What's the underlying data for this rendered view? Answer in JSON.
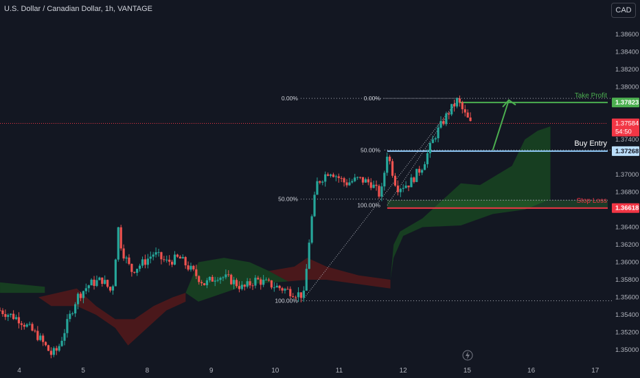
{
  "header": {
    "title": "U.S. Dollar / Canadian Dollar, 1h, VANTAGE",
    "currency_button": "CAD"
  },
  "colors": {
    "background": "#131722",
    "up_candle": "#26a69a",
    "down_candle": "#ef5350",
    "cloud_bull": "#1b5e20",
    "cloud_bear": "#5d1a1a",
    "take_profit": "#4caf50",
    "buy_entry": "#90caf9",
    "stop_loss": "#f23645",
    "current_price": "#f23645"
  },
  "chart_data": {
    "type": "candlestick",
    "title": "U.S. Dollar / Canadian Dollar, 1h, VANTAGE",
    "y_ticks": [
      "1.38600",
      "1.38400",
      "1.38200",
      "1.38000",
      "1.37400",
      "1.37000",
      "1.36800",
      "1.36400",
      "1.36200",
      "1.36000",
      "1.35800",
      "1.35600",
      "1.35400",
      "1.35200",
      "1.35000"
    ],
    "y_tick_values": [
      1.386,
      1.384,
      1.382,
      1.38,
      1.374,
      1.37,
      1.368,
      1.364,
      1.362,
      1.36,
      1.358,
      1.356,
      1.354,
      1.352,
      1.35
    ],
    "ylim": [
      1.349,
      1.3877
    ],
    "x_ticks": [
      "4",
      "5",
      "8",
      "9",
      "10",
      "11",
      "12",
      "15",
      "16",
      "17"
    ],
    "x_tick_values": [
      0,
      1,
      2,
      3,
      4,
      5,
      6,
      7,
      8,
      9
    ],
    "xlim": [
      -0.3,
      9.6
    ],
    "levels": {
      "take_profit": {
        "label": "Take Profit",
        "value": 1.37823,
        "value_label": "1.37823"
      },
      "buy_entry": {
        "label": "Buy Entry",
        "value": 1.37268,
        "value_label": "1.37268"
      },
      "stop_loss": {
        "label": "Stop Loss",
        "value": 1.36618,
        "value_label": "1.36618"
      },
      "current": {
        "value": 1.37584,
        "value_label": "1.37584",
        "countdown": "54:50"
      }
    },
    "fib_left": {
      "top": {
        "label": "0.00%",
        "value": 1.3787
      },
      "mid": {
        "label": "50.00%",
        "value": 1.3672
      },
      "bottom": {
        "label": "100.00%",
        "value": 1.3556
      }
    },
    "fib_right": {
      "top": {
        "label": "0.00%",
        "value": 1.3787
      },
      "mid": {
        "label": "50.00%",
        "value": 1.3728
      },
      "bottom": {
        "label": "100.00%",
        "value": 1.3665
      }
    },
    "price_path": [
      [
        -0.3,
        1.3545
      ],
      [
        0.0,
        1.3535
      ],
      [
        0.3,
        1.3515
      ],
      [
        0.5,
        1.3495
      ],
      [
        0.6,
        1.35
      ],
      [
        0.75,
        1.353
      ],
      [
        0.9,
        1.356
      ],
      [
        1.1,
        1.3575
      ],
      [
        1.3,
        1.358
      ],
      [
        1.45,
        1.3565
      ],
      [
        1.55,
        1.364
      ],
      [
        1.6,
        1.3615
      ],
      [
        1.75,
        1.359
      ],
      [
        1.95,
        1.36
      ],
      [
        2.1,
        1.361
      ],
      [
        2.3,
        1.36
      ],
      [
        2.5,
        1.3605
      ],
      [
        2.7,
        1.359
      ],
      [
        2.9,
        1.3575
      ],
      [
        3.1,
        1.3585
      ],
      [
        3.3,
        1.358
      ],
      [
        3.5,
        1.357
      ],
      [
        3.7,
        1.358
      ],
      [
        3.9,
        1.3575
      ],
      [
        4.1,
        1.357
      ],
      [
        4.3,
        1.3565
      ],
      [
        4.45,
        1.3562
      ],
      [
        4.55,
        1.364
      ],
      [
        4.65,
        1.369
      ],
      [
        4.85,
        1.3705
      ],
      [
        5.1,
        1.369
      ],
      [
        5.3,
        1.3695
      ],
      [
        5.5,
        1.369
      ],
      [
        5.65,
        1.3675
      ],
      [
        5.75,
        1.3725
      ],
      [
        5.9,
        1.3685
      ],
      [
        6.1,
        1.369
      ],
      [
        6.3,
        1.371
      ],
      [
        6.5,
        1.3745
      ],
      [
        6.7,
        1.377
      ],
      [
        6.85,
        1.3785
      ],
      [
        6.95,
        1.377
      ],
      [
        7.05,
        1.3758
      ]
    ],
    "cloud_bear": [
      [
        [
          0.3,
          1.356
        ],
        [
          0.9,
          1.357
        ],
        [
          1.2,
          1.355
        ],
        [
          1.5,
          1.3535
        ],
        [
          1.8,
          1.3535
        ],
        [
          2.1,
          1.355
        ],
        [
          2.4,
          1.356
        ],
        [
          2.6,
          1.3565
        ],
        [
          2.6,
          1.3555
        ],
        [
          2.3,
          1.3545
        ],
        [
          2.0,
          1.3525
        ],
        [
          1.7,
          1.3505
        ],
        [
          1.5,
          1.3525
        ],
        [
          1.2,
          1.354
        ],
        [
          0.9,
          1.355
        ],
        [
          0.5,
          1.355
        ]
      ],
      [
        [
          3.9,
          1.359
        ],
        [
          4.3,
          1.3595
        ],
        [
          4.5,
          1.3605
        ],
        [
          4.8,
          1.3595
        ],
        [
          5.3,
          1.3585
        ],
        [
          5.8,
          1.358
        ],
        [
          5.8,
          1.357
        ],
        [
          5.3,
          1.3575
        ],
        [
          4.8,
          1.358
        ],
        [
          4.5,
          1.358
        ],
        [
          4.2,
          1.3578
        ]
      ]
    ],
    "cloud_bull": [
      [
        [
          -0.3,
          1.3577
        ],
        [
          0.4,
          1.3572
        ],
        [
          0.4,
          1.3565
        ],
        [
          -0.3,
          1.3565
        ]
      ],
      [
        [
          2.6,
          1.3565
        ],
        [
          2.8,
          1.36
        ],
        [
          3.2,
          1.3605
        ],
        [
          3.6,
          1.36
        ],
        [
          3.9,
          1.359
        ],
        [
          4.2,
          1.3578
        ],
        [
          3.6,
          1.3575
        ],
        [
          3.2,
          1.3565
        ],
        [
          2.8,
          1.3555
        ]
      ],
      [
        [
          5.8,
          1.358
        ],
        [
          5.85,
          1.362
        ],
        [
          5.95,
          1.3635
        ],
        [
          6.3,
          1.365
        ],
        [
          6.9,
          1.369
        ],
        [
          7.2,
          1.3688
        ],
        [
          7.7,
          1.371
        ],
        [
          7.9,
          1.374
        ],
        [
          8.1,
          1.375
        ],
        [
          8.3,
          1.3755
        ],
        [
          8.3,
          1.3672
        ],
        [
          7.9,
          1.366
        ],
        [
          7.4,
          1.3655
        ],
        [
          6.9,
          1.3642
        ],
        [
          6.3,
          1.364
        ],
        [
          6.0,
          1.363
        ],
        [
          5.85,
          1.3605
        ]
      ]
    ],
    "arrow": {
      "from": [
        7.4,
        1.3728
      ],
      "to": [
        7.65,
        1.3785
      ]
    },
    "seed": 7
  }
}
